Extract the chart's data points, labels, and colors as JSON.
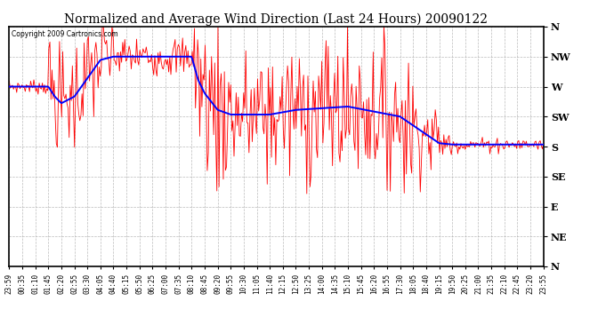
{
  "title": "Normalized and Average Wind Direction (Last 24 Hours) 20090122",
  "copyright": "Copyright 2009 Cartronics.com",
  "background_color": "#ffffff",
  "plot_bg_color": "#ffffff",
  "y_labels": [
    "N",
    "NW",
    "W",
    "SW",
    "S",
    "SE",
    "E",
    "NE",
    "N"
  ],
  "y_values": [
    360,
    315,
    270,
    225,
    180,
    135,
    90,
    45,
    0
  ],
  "ylim": [
    0,
    360
  ],
  "x_ticks_labels": [
    "23:59",
    "00:35",
    "01:10",
    "01:45",
    "02:20",
    "02:55",
    "03:30",
    "04:05",
    "04:40",
    "05:15",
    "05:50",
    "06:25",
    "07:00",
    "07:35",
    "08:10",
    "08:45",
    "09:20",
    "09:55",
    "10:30",
    "11:05",
    "11:40",
    "12:15",
    "12:50",
    "13:25",
    "14:00",
    "14:35",
    "15:10",
    "15:45",
    "16:20",
    "16:55",
    "17:30",
    "18:05",
    "18:40",
    "19:15",
    "19:50",
    "20:25",
    "21:00",
    "21:35",
    "22:10",
    "22:45",
    "23:20",
    "23:55"
  ],
  "grid_color": "#aaaaaa",
  "avg_color": "#0000ff",
  "raw_color": "#ff0000",
  "title_fontsize": 10,
  "tick_fontsize": 5.5,
  "ylabel_fontsize": 8,
  "avg_profile_t": [
    0,
    3,
    3.5,
    4,
    5,
    7,
    8,
    14,
    14.5,
    15,
    16,
    17,
    20,
    22,
    26,
    30,
    33,
    34,
    41
  ],
  "avg_profile_val": [
    270,
    270,
    255,
    245,
    255,
    310,
    315,
    315,
    280,
    260,
    235,
    228,
    228,
    235,
    240,
    225,
    185,
    183,
    183
  ],
  "noise_regions": [
    {
      "start": 0,
      "end": 3,
      "scale": 5
    },
    {
      "start": 3,
      "end": 8,
      "scale": 40
    },
    {
      "start": 8,
      "end": 14,
      "scale": 15
    },
    {
      "start": 14,
      "end": 17,
      "scale": 60
    },
    {
      "start": 17,
      "end": 27,
      "scale": 55
    },
    {
      "start": 27,
      "end": 31,
      "scale": 50
    },
    {
      "start": 31,
      "end": 33,
      "scale": 30
    },
    {
      "start": 33,
      "end": 34,
      "scale": 10
    },
    {
      "start": 34,
      "end": 41,
      "scale": 5
    }
  ]
}
